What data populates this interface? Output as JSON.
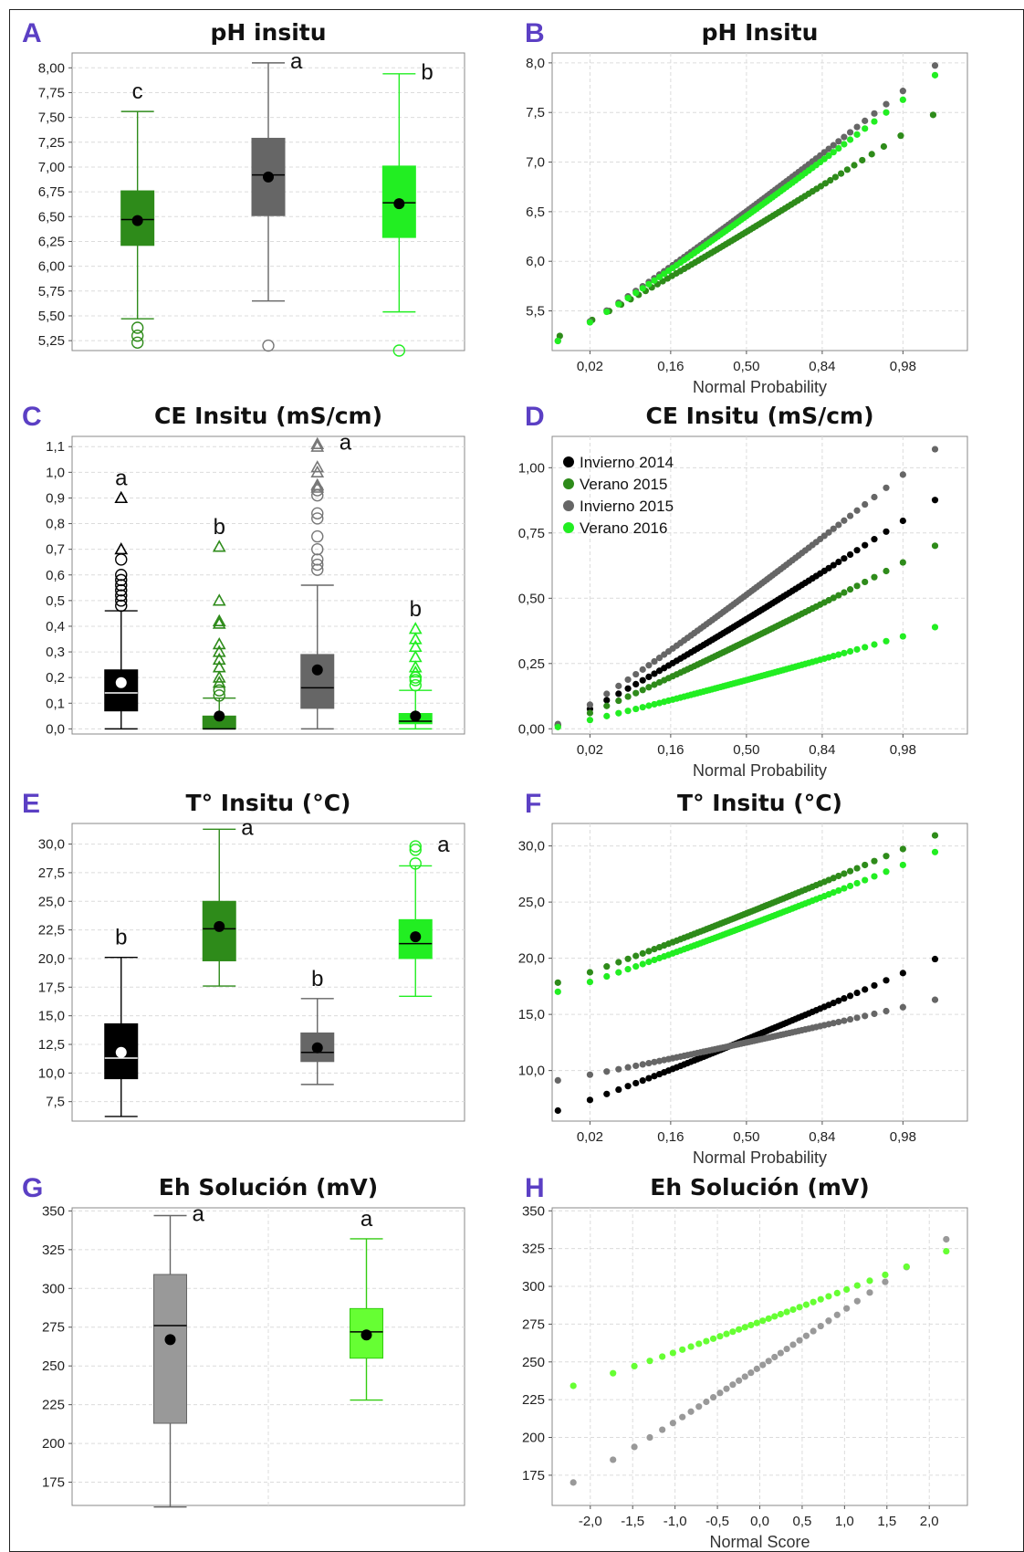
{
  "colors": {
    "invierno2014": "#000000",
    "verano2015": "#2e8b1a",
    "invierno2015": "#666666",
    "verano2016": "#22ee22",
    "eh_gris": "#999999",
    "eh_verde": "#66ff33",
    "panel_label": "#5b3fc4"
  },
  "legend": [
    "Invierno 2014",
    "Verano 2015",
    "Invierno 2015",
    "Verano 2016"
  ],
  "chart_data": [
    {
      "panel": "A",
      "type": "box",
      "title": "pH insitu",
      "yticks": [
        "8,00",
        "7,75",
        "7,50",
        "7,25",
        "7,00",
        "6,75",
        "6,50",
        "6,25",
        "6,00",
        "5,75",
        "5,50",
        "5,25"
      ],
      "ylim": [
        5.15,
        8.15
      ],
      "groups": [
        {
          "series": "Verano 2015",
          "min": 5.47,
          "q1": 6.21,
          "median": 6.47,
          "q3": 6.76,
          "max": 7.56,
          "mean": 6.46,
          "outliers": [
            5.38,
            5.3,
            5.23
          ],
          "outlier_marker": "circle",
          "letter": "c"
        },
        {
          "series": "Invierno 2015",
          "min": 5.65,
          "q1": 6.51,
          "median": 6.92,
          "q3": 7.29,
          "max": 8.05,
          "mean": 6.9,
          "outliers": [
            5.2
          ],
          "outlier_marker": "circle",
          "letter": "a"
        },
        {
          "series": "Verano 2016",
          "min": 5.54,
          "q1": 6.29,
          "median": 6.64,
          "q3": 7.01,
          "max": 7.94,
          "mean": 6.63,
          "outliers": [
            5.15
          ],
          "outlier_marker": "circle",
          "letter": "b"
        }
      ]
    },
    {
      "panel": "B",
      "type": "scatter",
      "title": "pH Insitu",
      "xlabel": "Normal  Probability",
      "xticks": [
        "0,02",
        "0,16",
        "0,50",
        "0,84",
        "0,98"
      ],
      "yticks": [
        "8,0",
        "7,5",
        "7,0",
        "6,5",
        "6,0",
        "5,5"
      ],
      "ylim": [
        5.1,
        8.1
      ],
      "series": [
        {
          "series": "Verano 2015",
          "from": 5.2,
          "to": 7.55,
          "n": 70
        },
        {
          "series": "Invierno 2015",
          "from": 5.15,
          "to": 8.05,
          "n": 75
        },
        {
          "series": "Verano 2016",
          "from": 5.15,
          "to": 7.95,
          "n": 75
        }
      ]
    },
    {
      "panel": "C",
      "type": "box",
      "title": "CE Insitu (mS/cm)",
      "yticks": [
        "1,1",
        "1,0",
        "0,9",
        "0,8",
        "0,7",
        "0,6",
        "0,5",
        "0,4",
        "0,3",
        "0,2",
        "0,1",
        "0,0"
      ],
      "ylim": [
        -0.02,
        1.14
      ],
      "groups": [
        {
          "series": "Invierno 2014",
          "min": 0.0,
          "q1": 0.07,
          "median": 0.14,
          "q3": 0.23,
          "max": 0.46,
          "mean": 0.18,
          "outliers_circle": [
            0.48,
            0.5,
            0.52,
            0.54,
            0.56,
            0.58,
            0.6,
            0.66
          ],
          "outliers_triangle": [
            0.7,
            0.9
          ],
          "letter": "a"
        },
        {
          "series": "Verano 2015",
          "min": 0.0,
          "q1": 0.0,
          "median": 0.0,
          "q3": 0.05,
          "max": 0.12,
          "mean": 0.05,
          "outliers_circle": [
            0.13,
            0.15
          ],
          "outliers_triangle": [
            0.18,
            0.2,
            0.24,
            0.27,
            0.3,
            0.33,
            0.41,
            0.42,
            0.5,
            0.71
          ],
          "letter": "b"
        },
        {
          "series": "Invierno 2015",
          "min": 0.0,
          "q1": 0.08,
          "median": 0.16,
          "q3": 0.29,
          "max": 0.56,
          "mean": 0.23,
          "outliers_circle": [
            0.62,
            0.64,
            0.66,
            0.7,
            0.75,
            0.82,
            0.84,
            0.91,
            0.93
          ],
          "outliers_triangle": [
            0.94,
            0.95,
            1.0,
            1.02,
            1.1,
            1.11
          ],
          "letter": "a"
        },
        {
          "series": "Verano 2016",
          "min": 0.0,
          "q1": 0.02,
          "median": 0.03,
          "q3": 0.06,
          "max": 0.15,
          "mean": 0.05,
          "outliers_circle": [
            0.17,
            0.19,
            0.2
          ],
          "outliers_triangle": [
            0.22,
            0.24,
            0.28,
            0.32,
            0.35,
            0.39
          ],
          "letter": "b"
        }
      ]
    },
    {
      "panel": "D",
      "type": "scatter",
      "title": "CE Insitu (mS/cm)",
      "xlabel": "Normal  Probability",
      "xticks": [
        "0,02",
        "0,16",
        "0,50",
        "0,84",
        "0,98"
      ],
      "yticks": [
        "1,00",
        "0,75",
        "0,50",
        "0,25",
        "0,00"
      ],
      "ylim": [
        -0.02,
        1.12
      ],
      "legend_position": "top-left",
      "series": [
        {
          "series": "Invierno 2014",
          "from": 0.0,
          "to": 0.9,
          "n": 75
        },
        {
          "series": "Verano 2015",
          "from": 0.0,
          "to": 0.72,
          "n": 75
        },
        {
          "series": "Invierno 2015",
          "from": 0.0,
          "to": 1.1,
          "n": 75
        },
        {
          "series": "Verano 2016",
          "from": 0.0,
          "to": 0.4,
          "n": 75
        }
      ]
    },
    {
      "panel": "E",
      "type": "box",
      "title": "T° Insitu (°C)",
      "yticks": [
        "30,0",
        "27,5",
        "25,0",
        "22,5",
        "20,0",
        "17,5",
        "15,0",
        "12,5",
        "10,0",
        "7,5"
      ],
      "ylim": [
        5.8,
        31.8
      ],
      "groups": [
        {
          "series": "Invierno 2014",
          "min": 6.2,
          "q1": 9.5,
          "median": 11.3,
          "q3": 14.3,
          "max": 20.1,
          "mean": 11.8,
          "letter": "b"
        },
        {
          "series": "Verano 2015",
          "min": 17.6,
          "q1": 19.8,
          "median": 22.6,
          "q3": 25.0,
          "max": 31.3,
          "mean": 22.8,
          "letter": "a"
        },
        {
          "series": "Invierno 2015",
          "min": 9.0,
          "q1": 11.0,
          "median": 11.8,
          "q3": 13.5,
          "max": 16.5,
          "mean": 12.2,
          "letter": "b"
        },
        {
          "series": "Verano 2016",
          "min": 16.7,
          "q1": 20.0,
          "median": 21.3,
          "q3": 23.4,
          "max": 28.1,
          "mean": 21.9,
          "outliers": [
            28.3,
            29.5,
            29.8
          ],
          "outlier_marker": "circle",
          "letter": "a"
        }
      ]
    },
    {
      "panel": "F",
      "type": "scatter",
      "title": "T° Insitu (°C)",
      "xlabel": "Normal  Probability",
      "xticks": [
        "0,02",
        "0,16",
        "0,50",
        "0,84",
        "0,98"
      ],
      "yticks": [
        "30,0",
        "25,0",
        "20,0",
        "15,0",
        "10,0"
      ],
      "ylim": [
        5.5,
        32.0
      ],
      "series": [
        {
          "series": "Invierno 2014",
          "from": 6.2,
          "to": 20.3,
          "n": 75
        },
        {
          "series": "Verano 2015",
          "from": 17.6,
          "to": 31.3,
          "n": 75
        },
        {
          "series": "Invierno 2015",
          "from": 9.0,
          "to": 16.5,
          "n": 75
        },
        {
          "series": "Verano 2016",
          "from": 16.8,
          "to": 29.8,
          "n": 75
        }
      ]
    },
    {
      "panel": "G",
      "type": "box",
      "title": "Eh Solución (mV)",
      "yticks": [
        "350",
        "325",
        "300",
        "275",
        "250",
        "225",
        "200",
        "175"
      ],
      "ylim": [
        160,
        352
      ],
      "groups": [
        {
          "series": "Invierno 2015",
          "min": 159,
          "q1": 213,
          "median": 276,
          "q3": 309,
          "max": 347,
          "mean": 267,
          "letter": "a"
        },
        {
          "series": "Verano 2016",
          "min": 228,
          "q1": 255,
          "median": 272,
          "q3": 287,
          "max": 332,
          "mean": 270,
          "letter": "a"
        }
      ]
    },
    {
      "panel": "H",
      "type": "scatter",
      "title": "Eh Solución (mV)",
      "xlabel": "Normal  Score",
      "xticks": [
        "-2,0",
        "-1,5",
        "-1,0",
        "-0,5",
        "0,0",
        "0,5",
        "1,0",
        "1,5",
        "2,0"
      ],
      "yticks": [
        "350",
        "325",
        "300",
        "275",
        "250",
        "225",
        "200",
        "175"
      ],
      "ylim": [
        155,
        352
      ],
      "series": [
        {
          "series": "Invierno 2015",
          "from": 159,
          "to": 347,
          "n": 36
        },
        {
          "series": "Verano 2016",
          "from": 228,
          "to": 332,
          "n": 36
        }
      ]
    }
  ]
}
